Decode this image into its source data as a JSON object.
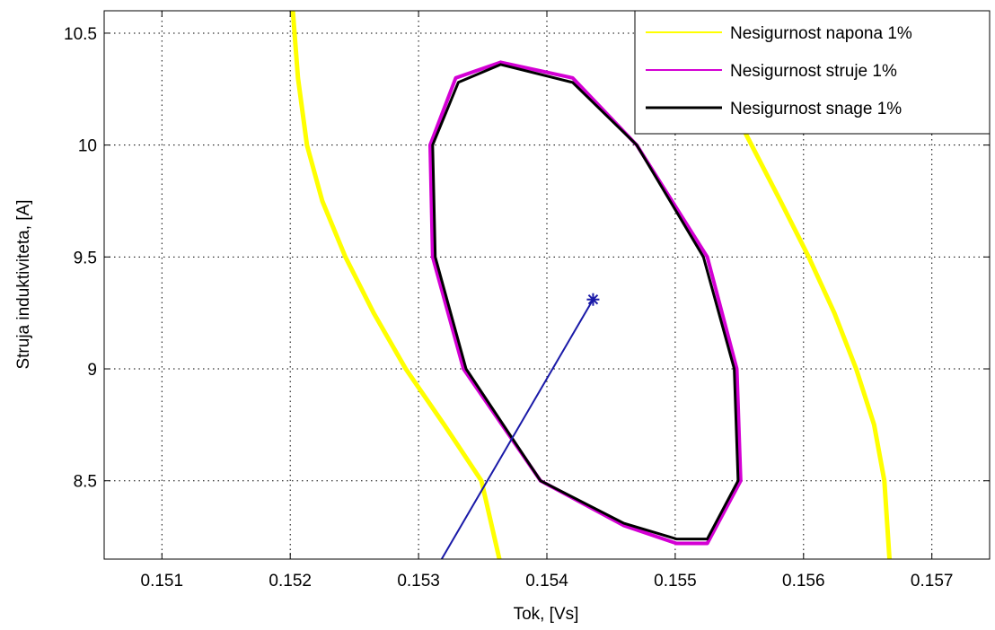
{
  "chart_data": {
    "type": "line",
    "title": "",
    "xlabel": "Tok, [Vs]",
    "ylabel": "Struja induktiviteta, [A]",
    "xlim": [
      0.15055,
      0.15745
    ],
    "ylim": [
      8.15,
      10.6
    ],
    "grid": true,
    "legend_position": "top-right",
    "x_ticks": [
      0.151,
      0.152,
      0.153,
      0.154,
      0.155,
      0.156,
      0.157
    ],
    "x_tick_labels": [
      "0.151",
      "0.152",
      "0.153",
      "0.154",
      "0.155",
      "0.156",
      "0.157"
    ],
    "y_ticks": [
      8.5,
      9,
      9.5,
      10,
      10.5
    ],
    "y_tick_labels": [
      "8.5",
      "9",
      "9.5",
      "10",
      "10.5"
    ],
    "series": [
      {
        "name": "Nesigurnost napona 1%",
        "color": "#ffff00",
        "style": "solid",
        "segments": [
          [
            [
              0.15202,
              10.6
            ],
            [
              0.15206,
              10.3
            ],
            [
              0.15213,
              10.0
            ],
            [
              0.15225,
              9.75
            ],
            [
              0.15243,
              9.5
            ],
            [
              0.15265,
              9.25
            ],
            [
              0.1529,
              9.0
            ],
            [
              0.1532,
              8.75
            ],
            [
              0.15349,
              8.5
            ],
            [
              0.15363,
              8.15
            ]
          ],
          [
            [
              0.15555,
              10.05
            ],
            [
              0.15582,
              9.75
            ],
            [
              0.15604,
              9.5
            ],
            [
              0.15624,
              9.25
            ],
            [
              0.15641,
              9.0
            ],
            [
              0.15655,
              8.75
            ],
            [
              0.15663,
              8.5
            ],
            [
              0.15667,
              8.15
            ]
          ]
        ]
      },
      {
        "name": "Nesigurnost struje 1%",
        "color": "#d400d4",
        "style": "solid",
        "segments": [
          [
            [
              0.15364,
              10.37
            ],
            [
              0.1542,
              10.3
            ],
            [
              0.1547,
              10.0
            ],
            [
              0.15525,
              9.5
            ],
            [
              0.15548,
              9.0
            ],
            [
              0.15551,
              8.5
            ],
            [
              0.15525,
              8.22
            ],
            [
              0.15501,
              8.22
            ],
            [
              0.1546,
              8.3
            ],
            [
              0.15395,
              8.5
            ],
            [
              0.15335,
              9.0
            ],
            [
              0.15311,
              9.5
            ],
            [
              0.15309,
              10.0
            ],
            [
              0.15329,
              10.3
            ],
            [
              0.15364,
              10.37
            ]
          ]
        ]
      },
      {
        "name": "Nesigurnost snage 1%",
        "color": "#000000",
        "style": "solid",
        "segments": [
          [
            [
              0.15364,
              10.36
            ],
            [
              0.1542,
              10.28
            ],
            [
              0.1547,
              10.0
            ],
            [
              0.15522,
              9.5
            ],
            [
              0.15546,
              9.0
            ],
            [
              0.15549,
              8.5
            ],
            [
              0.15525,
              8.24
            ],
            [
              0.15501,
              8.24
            ],
            [
              0.1546,
              8.31
            ],
            [
              0.15395,
              8.5
            ],
            [
              0.15337,
              9.0
            ],
            [
              0.15313,
              9.5
            ],
            [
              0.15311,
              10.0
            ],
            [
              0.15331,
              10.28
            ],
            [
              0.15364,
              10.36
            ]
          ]
        ]
      },
      {
        "color": "#1a1aa8",
        "style": "solid",
        "points": [
          [
            0.15318,
            8.15
          ],
          [
            0.15436,
            9.31
          ]
        ],
        "marker_point": [
          0.15436,
          9.31
        ]
      }
    ]
  }
}
